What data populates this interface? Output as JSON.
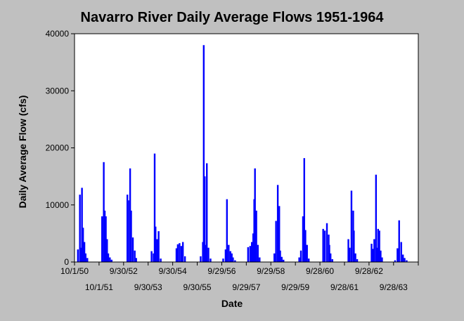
{
  "chart_data": {
    "type": "bar",
    "title": "Navarro River Daily Average Flows 1951-1964",
    "xlabel": "Date",
    "ylabel": "Daily Average Flow (cfs)",
    "ylim": [
      0,
      40000
    ],
    "y_ticks": [
      0,
      10000,
      20000,
      30000,
      40000
    ],
    "x_range": [
      "1950-10-01",
      "1964-09-30"
    ],
    "x_ticks_row1": [
      {
        "date": "1950-10-01",
        "label": "10/1/50"
      },
      {
        "date": "1952-09-30",
        "label": "9/30/52"
      },
      {
        "date": "1954-09-30",
        "label": "9/30/54"
      },
      {
        "date": "1956-09-29",
        "label": "9/29/56"
      },
      {
        "date": "1958-09-29",
        "label": "9/29/58"
      },
      {
        "date": "1960-09-28",
        "label": "9/28/60"
      },
      {
        "date": "1962-09-28",
        "label": "9/28/62"
      }
    ],
    "x_ticks_row2": [
      {
        "date": "1951-10-01",
        "label": "10/1/51"
      },
      {
        "date": "1953-09-30",
        "label": "9/30/53"
      },
      {
        "date": "1955-09-30",
        "label": "9/30/55"
      },
      {
        "date": "1957-09-29",
        "label": "9/29/57"
      },
      {
        "date": "1959-09-29",
        "label": "9/29/59"
      },
      {
        "date": "1961-09-28",
        "label": "9/28/61"
      },
      {
        "date": "1963-09-28",
        "label": "9/28/63"
      }
    ],
    "series": [
      {
        "color": "#0000ff",
        "x": [
          "1950-11-20",
          "1950-12-20",
          "1951-01-05",
          "1951-01-20",
          "1951-02-05",
          "1951-02-25",
          "1951-03-15",
          "1951-04-10",
          "1951-11-15",
          "1951-12-10",
          "1951-12-25",
          "1952-01-10",
          "1952-01-28",
          "1952-02-15",
          "1952-03-10",
          "1952-04-05",
          "1952-11-25",
          "1952-12-10",
          "1953-01-05",
          "1953-01-20",
          "1953-02-15",
          "1953-03-15",
          "1953-04-05",
          "1953-11-20",
          "1953-12-20",
          "1954-01-05",
          "1954-01-18",
          "1954-02-10",
          "1954-03-05",
          "1954-04-05",
          "1954-11-25",
          "1954-12-15",
          "1955-01-10",
          "1955-02-05",
          "1955-03-01",
          "1955-04-01",
          "1955-11-20",
          "1955-12-23",
          "1956-01-05",
          "1956-01-20",
          "1956-02-01",
          "1956-02-20",
          "1956-03-15",
          "1956-04-15",
          "1956-10-20",
          "1956-11-25",
          "1956-12-15",
          "1957-01-10",
          "1957-02-05",
          "1957-02-25",
          "1957-03-15",
          "1957-04-15",
          "1957-10-25",
          "1957-11-25",
          "1957-12-20",
          "1958-01-10",
          "1958-01-25",
          "1958-02-05",
          "1958-02-25",
          "1958-03-20",
          "1958-04-15",
          "1958-11-20",
          "1958-12-15",
          "1959-01-10",
          "1959-02-01",
          "1959-02-15",
          "1959-03-10",
          "1959-04-05",
          "1959-11-25",
          "1959-12-20",
          "1960-01-20",
          "1960-02-08",
          "1960-02-25",
          "1960-03-20",
          "1960-04-15",
          "1960-11-15",
          "1960-12-10",
          "1961-01-10",
          "1961-02-05",
          "1961-02-15",
          "1961-03-05",
          "1961-04-01",
          "1961-11-25",
          "1961-12-15",
          "1962-01-10",
          "1962-02-05",
          "1962-02-15",
          "1962-03-10",
          "1962-04-05",
          "1962-11-05",
          "1962-11-25",
          "1962-12-15",
          "1963-01-10",
          "1963-02-01",
          "1963-02-10",
          "1963-03-01",
          "1963-03-20",
          "1963-04-10",
          "1963-10-20",
          "1963-11-25",
          "1963-12-20",
          "1964-01-20",
          "1964-02-15",
          "1964-03-10",
          "1964-04-10"
        ],
        "values": [
          2200,
          11800,
          2500,
          13000,
          6000,
          3500,
          1500,
          700,
          8000,
          17500,
          9000,
          8000,
          4000,
          1500,
          800,
          400,
          11800,
          10800,
          16400,
          9000,
          4300,
          2000,
          700,
          1900,
          1500,
          19000,
          6200,
          4000,
          5400,
          600,
          2400,
          3100,
          3300,
          2800,
          3500,
          1000,
          1000,
          3500,
          38000,
          15000,
          3000,
          17300,
          2500,
          600,
          600,
          2200,
          11000,
          3000,
          1900,
          1500,
          800,
          300,
          2600,
          2800,
          3500,
          5000,
          11000,
          16400,
          9000,
          3000,
          800,
          1500,
          7200,
          13500,
          9800,
          2000,
          900,
          400,
          800,
          2000,
          8000,
          18200,
          5600,
          3000,
          600,
          5800,
          5500,
          6800,
          4800,
          3000,
          1500,
          500,
          4000,
          2500,
          12500,
          9000,
          5500,
          1500,
          500,
          3200,
          2300,
          4000,
          15300,
          2500,
          5800,
          5500,
          2000,
          800,
          300,
          2400,
          7300,
          3500,
          1300,
          700,
          300
        ]
      }
    ]
  }
}
